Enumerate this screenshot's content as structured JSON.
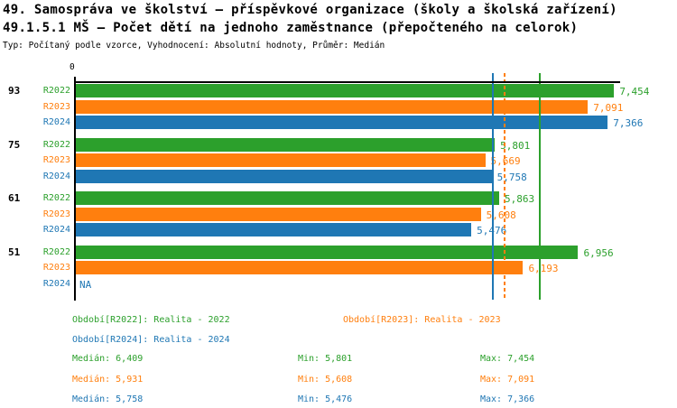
{
  "header": {
    "title_line1": "49. Samospráva ve školství – příspěvkové organizace (školy a školská zařízení)",
    "title_line2": "49.1.5.1 MŠ – Počet dětí na jednoho zaměstnance (přepočteného na celorok)",
    "meta_line": "Typ: Počítaný podle vzorce, Vyhodnocení: Absolutní hodnoty, Průměr: Medián"
  },
  "colors": {
    "green": "#2ca02c",
    "orange": "#ff7f0e",
    "blue": "#1f77b4",
    "axis": "#000000"
  },
  "chart_data": {
    "type": "bar",
    "orientation": "horizontal",
    "title": "49.1.5.1 MŠ – Počet dětí na jednoho zaměstnance (přepočteného na celorok)",
    "xlabel": "",
    "ylabel": "",
    "xlim": [
      0,
      7.5
    ],
    "grid": false,
    "zero_tick_label": "0",
    "na_label": "NA",
    "categories": [
      "93",
      "75",
      "61",
      "51"
    ],
    "series": [
      {
        "name": "R2022",
        "legend_label": "Období[R2022]: Realita - 2022",
        "color_key": "green",
        "values": [
          7.454,
          5.801,
          5.863,
          6.956
        ],
        "value_labels": [
          "7,454",
          "5,801",
          "5,863",
          "6,956"
        ],
        "median": 6.409,
        "median_line_style": "solid"
      },
      {
        "name": "R2023",
        "legend_label": "Období[R2023]: Realita - 2023",
        "color_key": "orange",
        "values": [
          7.091,
          5.669,
          5.608,
          6.193
        ],
        "value_labels": [
          "7,091",
          "5,669",
          "5,608",
          "6,193"
        ],
        "median": 5.931,
        "median_line_style": "dashed"
      },
      {
        "name": "R2024",
        "legend_label": "Období[R2024]: Realita - 2024",
        "color_key": "blue",
        "values": [
          7.366,
          5.758,
          5.476,
          null
        ],
        "value_labels": [
          "7,366",
          "5,758",
          "5,476",
          "NA"
        ],
        "median": 5.758,
        "median_line_style": "solid"
      }
    ],
    "legend_position": "bottom",
    "stats": [
      {
        "color_key": "green",
        "median": "Medián: 6,409",
        "min": "Min: 5,801",
        "max": "Max: 7,454"
      },
      {
        "color_key": "orange",
        "median": "Medián: 5,931",
        "min": "Min: 5,608",
        "max": "Max: 7,091"
      },
      {
        "color_key": "blue",
        "median": "Medián: 5,758",
        "min": "Min: 5,476",
        "max": "Max: 7,366"
      }
    ]
  }
}
